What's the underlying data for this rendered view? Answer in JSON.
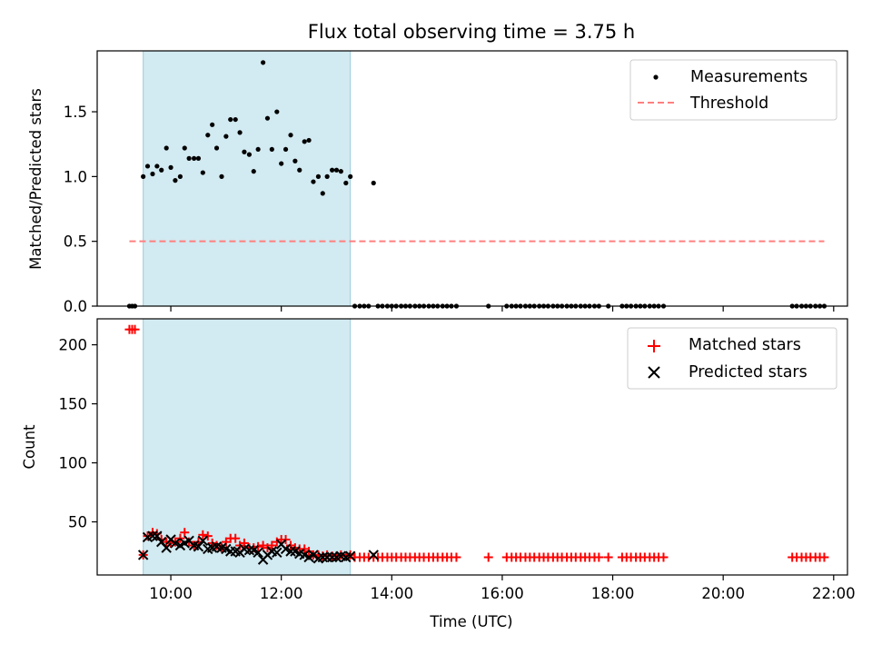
{
  "chart_data": [
    {
      "type": "scatter",
      "title": "Flux total observing time = 3.75 h",
      "xlabel": "",
      "ylabel": "Matched/Predicted stars",
      "xlim": [
        8.667,
        22.25
      ],
      "ylim": [
        0,
        1.97
      ],
      "yticks": [
        0.0,
        0.5,
        1.0,
        1.5
      ],
      "ytick_labels": [
        "0.0",
        "0.5",
        "1.0",
        "1.5"
      ],
      "xticks": [
        10,
        12,
        14,
        16,
        18,
        20,
        22
      ],
      "grid": false,
      "legend_position": "top-right",
      "shaded_span": [
        9.5,
        13.25
      ],
      "shade_color": "#add8e6",
      "series": [
        {
          "name": "Measurements",
          "kind": "scatter",
          "color": "#000000",
          "x": [
            9.25,
            9.3,
            9.35,
            9.5,
            9.58,
            9.67,
            9.75,
            9.83,
            9.92,
            10.0,
            10.08,
            10.17,
            10.25,
            10.33,
            10.42,
            10.5,
            10.58,
            10.67,
            10.75,
            10.83,
            10.92,
            11.0,
            11.08,
            11.17,
            11.25,
            11.33,
            11.42,
            11.5,
            11.58,
            11.67,
            11.75,
            11.83,
            11.92,
            12.0,
            12.08,
            12.17,
            12.25,
            12.33,
            12.42,
            12.5,
            12.58,
            12.67,
            12.75,
            12.83,
            12.92,
            13.0,
            13.08,
            13.17,
            13.25,
            13.33,
            13.42,
            13.5,
            13.58,
            13.67,
            13.75,
            13.83,
            13.92,
            14.0,
            14.08,
            14.17,
            14.25,
            14.33,
            14.42,
            14.5,
            14.58,
            14.67,
            14.75,
            14.83,
            14.92,
            15.0,
            15.08,
            15.17,
            15.75,
            16.08,
            16.17,
            16.25,
            16.33,
            16.42,
            16.5,
            16.58,
            16.67,
            16.75,
            16.83,
            16.92,
            17.0,
            17.08,
            17.17,
            17.25,
            17.33,
            17.42,
            17.5,
            17.58,
            17.67,
            17.75,
            17.92,
            18.17,
            18.25,
            18.33,
            18.42,
            18.5,
            18.58,
            18.67,
            18.75,
            18.83,
            18.92,
            21.25,
            21.33,
            21.42,
            21.5,
            21.58,
            21.67,
            21.75,
            21.83
          ],
          "y": [
            0,
            0,
            0,
            1.0,
            1.08,
            1.02,
            1.08,
            1.05,
            1.22,
            1.07,
            0.97,
            1.0,
            1.22,
            1.14,
            1.14,
            1.14,
            1.03,
            1.32,
            1.4,
            1.22,
            1.0,
            1.31,
            1.44,
            1.44,
            1.34,
            1.19,
            1.17,
            1.04,
            1.21,
            1.88,
            1.45,
            1.21,
            1.5,
            1.1,
            1.21,
            1.32,
            1.12,
            1.05,
            1.27,
            1.28,
            0.96,
            1.0,
            0.87,
            1.0,
            1.05,
            1.05,
            1.04,
            0.95,
            1.0,
            0,
            0,
            0,
            0,
            0.95,
            0,
            0,
            0,
            0,
            0,
            0,
            0,
            0,
            0,
            0,
            0,
            0,
            0,
            0,
            0,
            0,
            0,
            0,
            0,
            0,
            0,
            0,
            0,
            0,
            0,
            0,
            0,
            0,
            0,
            0,
            0,
            0,
            0,
            0,
            0,
            0,
            0,
            0,
            0,
            0,
            0,
            0,
            0,
            0,
            0,
            0,
            0,
            0,
            0,
            0,
            0,
            0,
            0,
            0,
            0,
            0,
            0,
            0,
            0
          ]
        },
        {
          "name": "Threshold",
          "kind": "dashed-line",
          "color": "#ff7f7f",
          "x": [
            9.25,
            21.83
          ],
          "y": [
            0.5,
            0.5
          ]
        }
      ]
    },
    {
      "type": "scatter",
      "title": "",
      "xlabel": "Time (UTC)",
      "ylabel": "Count",
      "xlim": [
        8.667,
        22.25
      ],
      "ylim": [
        5,
        222
      ],
      "yticks": [
        50,
        100,
        150,
        200
      ],
      "ytick_labels": [
        "50",
        "100",
        "150",
        "200"
      ],
      "xticks": [
        10,
        12,
        14,
        16,
        18,
        20,
        22
      ],
      "xtick_labels": [
        "10:00",
        "12:00",
        "14:00",
        "16:00",
        "18:00",
        "20:00",
        "22:00"
      ],
      "grid": false,
      "legend_position": "top-right",
      "shaded_span": [
        9.5,
        13.25
      ],
      "shade_color": "#add8e6",
      "series": [
        {
          "name": "Matched stars",
          "kind": "plus",
          "color": "#ff0000",
          "x": [
            9.25,
            9.3,
            9.35,
            9.5,
            9.58,
            9.67,
            9.75,
            9.83,
            9.92,
            10.0,
            10.08,
            10.17,
            10.25,
            10.33,
            10.42,
            10.5,
            10.58,
            10.67,
            10.75,
            10.83,
            10.92,
            11.0,
            11.08,
            11.17,
            11.25,
            11.33,
            11.42,
            11.5,
            11.58,
            11.67,
            11.75,
            11.83,
            11.92,
            12.0,
            12.08,
            12.17,
            12.25,
            12.33,
            12.42,
            12.5,
            12.58,
            12.67,
            12.75,
            12.83,
            12.92,
            13.0,
            13.08,
            13.17,
            13.25,
            13.33,
            13.42,
            13.5,
            13.58,
            13.67,
            13.75,
            13.83,
            13.92,
            14.0,
            14.08,
            14.17,
            14.25,
            14.33,
            14.42,
            14.5,
            14.58,
            14.67,
            14.75,
            14.83,
            14.92,
            15.0,
            15.08,
            15.17,
            15.75,
            16.08,
            16.17,
            16.25,
            16.33,
            16.42,
            16.5,
            16.58,
            16.67,
            16.75,
            16.83,
            16.92,
            17.0,
            17.08,
            17.17,
            17.25,
            17.33,
            17.42,
            17.5,
            17.58,
            17.67,
            17.75,
            17.92,
            18.17,
            18.25,
            18.33,
            18.42,
            18.5,
            18.58,
            18.67,
            18.75,
            18.83,
            18.92,
            21.25,
            21.33,
            21.42,
            21.5,
            21.58,
            21.67,
            21.75,
            21.83
          ],
          "y": [
            213,
            213,
            213,
            22,
            38,
            41,
            40,
            35,
            33,
            32,
            33,
            36,
            41,
            33,
            30,
            33,
            39,
            38,
            32,
            30,
            28,
            33,
            36,
            36,
            30,
            32,
            28,
            28,
            29,
            30,
            28,
            30,
            33,
            35,
            35,
            30,
            28,
            27,
            27,
            25,
            22,
            22,
            21,
            22,
            21,
            21,
            22,
            21,
            22,
            20,
            20,
            20,
            20,
            20,
            20,
            20,
            20,
            20,
            20,
            20,
            20,
            20,
            20,
            20,
            20,
            20,
            20,
            20,
            20,
            20,
            20,
            20,
            20,
            20,
            20,
            20,
            20,
            20,
            20,
            20,
            20,
            20,
            20,
            20,
            20,
            20,
            20,
            20,
            20,
            20,
            20,
            20,
            20,
            20,
            20,
            20,
            20,
            20,
            20,
            20,
            20,
            20,
            20,
            20,
            20,
            20,
            20,
            20,
            20,
            20,
            20,
            20,
            20
          ]
        },
        {
          "name": "Predicted stars",
          "kind": "cross",
          "color": "#000000",
          "x": [
            9.5,
            9.58,
            9.67,
            9.75,
            9.83,
            9.92,
            10.0,
            10.08,
            10.17,
            10.25,
            10.33,
            10.42,
            10.5,
            10.58,
            10.67,
            10.75,
            10.83,
            10.92,
            11.0,
            11.08,
            11.17,
            11.25,
            11.33,
            11.42,
            11.5,
            11.58,
            11.67,
            11.75,
            11.83,
            11.92,
            12.0,
            12.08,
            12.17,
            12.25,
            12.33,
            12.42,
            12.5,
            12.58,
            12.67,
            12.75,
            12.83,
            12.92,
            13.0,
            13.08,
            13.17,
            13.25,
            13.67
          ],
          "y": [
            22,
            37,
            38,
            38,
            33,
            28,
            35,
            32,
            30,
            32,
            34,
            30,
            29,
            34,
            27,
            28,
            29,
            28,
            27,
            25,
            25,
            24,
            27,
            26,
            26,
            24,
            18,
            22,
            25,
            24,
            31,
            27,
            25,
            25,
            23,
            22,
            20,
            22,
            19,
            20,
            20,
            20,
            20,
            21,
            20,
            21,
            22
          ]
        }
      ]
    }
  ]
}
